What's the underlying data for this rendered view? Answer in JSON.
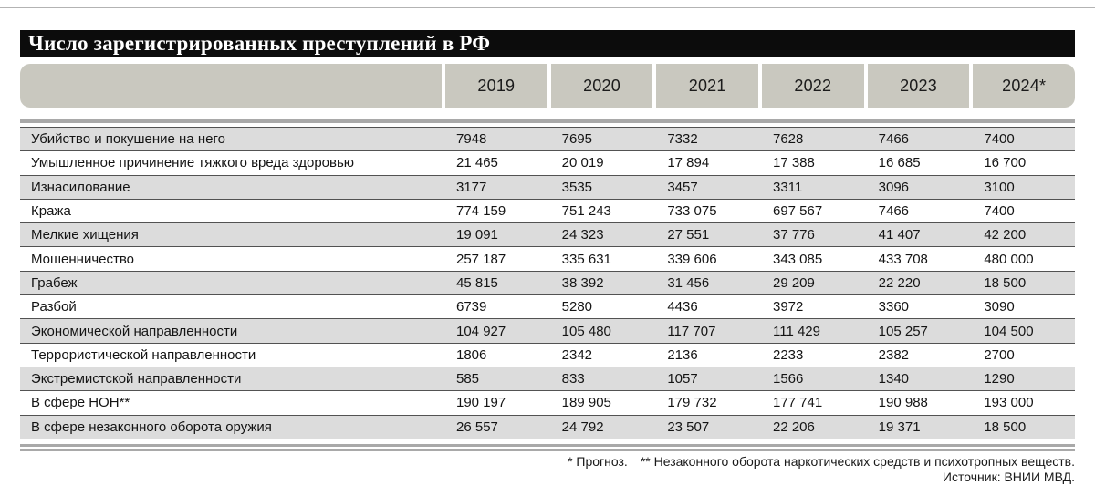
{
  "chart_data": {
    "type": "table",
    "title": "Число зарегистрированных преступлений в РФ",
    "columns": [
      "2019",
      "2020",
      "2021",
      "2022",
      "2023",
      "2024*"
    ],
    "rows": [
      {
        "label": "Убийство и покушение на него",
        "values": [
          "7948",
          "7695",
          "7332",
          "7628",
          "7466",
          "7400"
        ]
      },
      {
        "label": "Умышленное причинение тяжкого вреда здоровью",
        "values": [
          "21 465",
          "20 019",
          "17 894",
          "17 388",
          "16 685",
          "16 700"
        ]
      },
      {
        "label": "Изнасилование",
        "values": [
          "3177",
          "3535",
          "3457",
          "3311",
          "3096",
          "3100"
        ]
      },
      {
        "label": "Кража",
        "values": [
          "774 159",
          "751 243",
          "733 075",
          "697 567",
          "7466",
          "7400"
        ]
      },
      {
        "label": "Мелкие хищения",
        "values": [
          "19 091",
          "24 323",
          "27 551",
          "37 776",
          "41 407",
          "42 200"
        ]
      },
      {
        "label": "Мошенничество",
        "values": [
          "257 187",
          "335 631",
          "339 606",
          "343 085",
          "433 708",
          "480 000"
        ]
      },
      {
        "label": "Грабеж",
        "values": [
          "45 815",
          "38 392",
          "31 456",
          "29 209",
          "22 220",
          "18 500"
        ]
      },
      {
        "label": "Разбой",
        "values": [
          "6739",
          "5280",
          "4436",
          "3972",
          "3360",
          "3090"
        ]
      },
      {
        "label": "Экономической направленности",
        "values": [
          "104 927",
          "105 480",
          "117 707",
          "111 429",
          "105 257",
          "104 500"
        ]
      },
      {
        "label": "Террористической направленности",
        "values": [
          "1806",
          "2342",
          "2136",
          "2233",
          "2382",
          "2700"
        ]
      },
      {
        "label": "Экстремистской направленности",
        "values": [
          "585",
          "833",
          "1057",
          "1566",
          "1340",
          "1290"
        ]
      },
      {
        "label": "В сфере НОН**",
        "values": [
          "190 197",
          "189 905",
          "179 732",
          "177 741",
          "190 988",
          "193 000"
        ]
      },
      {
        "label": "В сфере незаконного оборота оружия",
        "values": [
          "26 557",
          "24 792",
          "23 507",
          "22 206",
          "19 371",
          "18 500"
        ]
      }
    ]
  },
  "footnotes": {
    "forecast": "* Прогноз.",
    "non": "** Незаконного оборота наркотических средств и психотропных веществ.",
    "source": "Источник: ВНИИ МВД."
  },
  "colors": {
    "title_bg": "#0c0c0c",
    "title_text": "#ffffff",
    "header_cell": "#c9c8bf",
    "row_stripe": "#dcdcdc",
    "separator_bar": "#a9a9a9",
    "row_line": "#525252"
  }
}
